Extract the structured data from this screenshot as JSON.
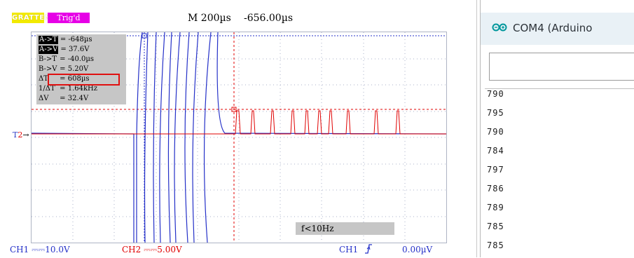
{
  "scope": {
    "brand": "GRATTEN",
    "trig_status": "Trig'd",
    "timebase": "M 200µs",
    "time_position": "-656.00µs",
    "trigger_marker": {
      "t": "T",
      "channel": "2"
    },
    "measurements": [
      {
        "label": "A->T",
        "value": "= -648µs",
        "inverted": true
      },
      {
        "label": "A->V",
        "value": "= 37.6V",
        "inverted": true
      },
      {
        "label": "B->T",
        "value": "= -40.0µs",
        "inverted": false
      },
      {
        "label": "B->V",
        "value": "= 5.20V",
        "inverted": false
      },
      {
        "label": "ΔT",
        "value": "= 608µs",
        "inverted": false,
        "highlighted": true
      },
      {
        "label": "1/ΔT",
        "value": "= 1.64kHz",
        "inverted": false
      },
      {
        "label": "ΔV",
        "value": "= 32.4V",
        "inverted": false
      }
    ],
    "frequency_readout": "f<10Hz",
    "ch1_scale": "CH1 ⎓⎓10.0V",
    "ch2_scale": "CH2 ⎓⎓5.00V",
    "trigger_source": "CH1",
    "trigger_edge_icon": "rising-edge-icon",
    "trigger_level": "0.00µV",
    "colors": {
      "ch1": "#2430c8",
      "ch2": "#e00000",
      "grid": "#a8b0c8"
    }
  },
  "serial": {
    "title": "COM4 (Arduino",
    "icon": "arduino-infinity-icon",
    "input_value": "",
    "lines": [
      "790",
      "795",
      "790",
      "784",
      "797",
      "786",
      "789",
      "785",
      "785"
    ]
  }
}
